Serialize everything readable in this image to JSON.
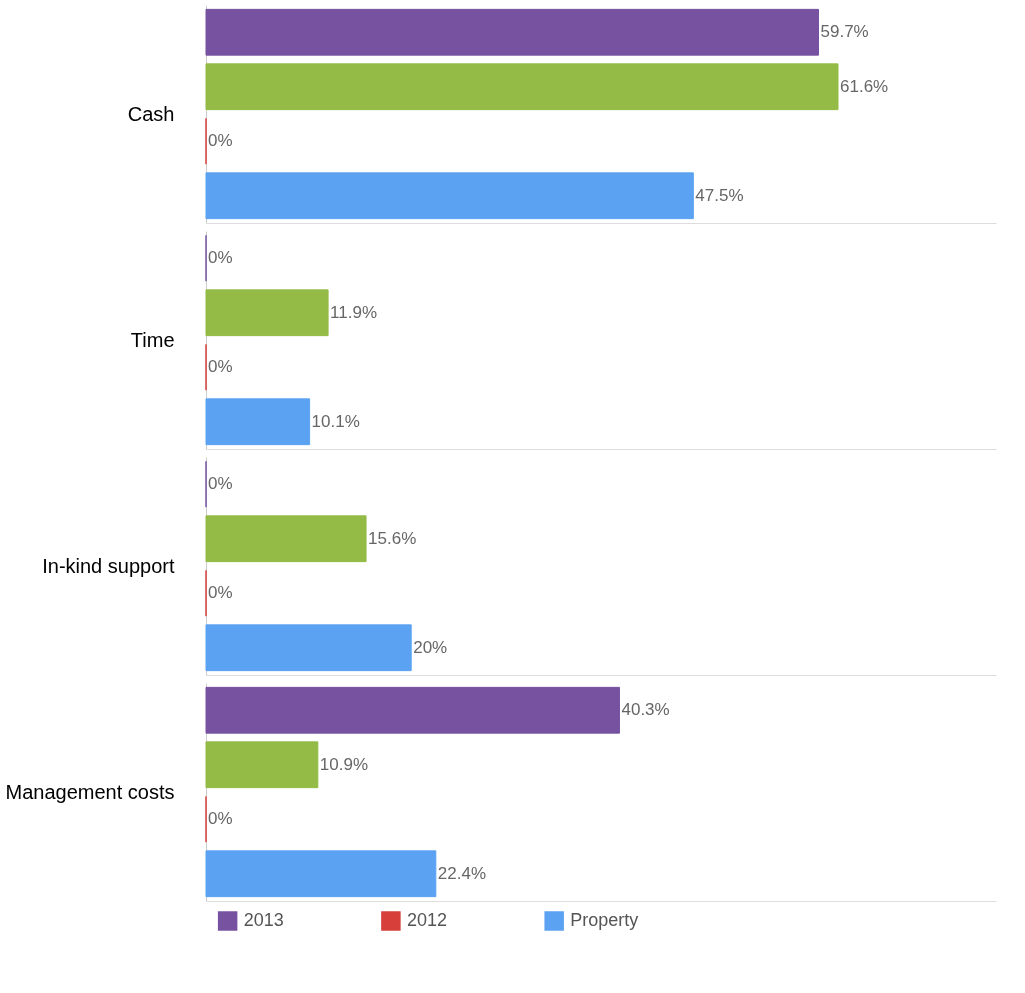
{
  "chart_data": {
    "type": "bar",
    "orientation": "horizontal",
    "legend": "bottom",
    "categories": [
      "Cash",
      "Time",
      "In-kind support",
      "Management costs"
    ],
    "series": [
      {
        "name": "2013",
        "color": "#7652a1",
        "values": [
          59.7,
          0,
          0,
          40.3
        ],
        "value_labels": [
          "59.7%",
          "0%",
          "0%",
          "40.3%"
        ]
      },
      {
        "color": "#93bb45",
        "values": [
          61.6,
          11.9,
          15.6,
          10.9
        ],
        "value_labels": [
          "61.6%",
          "11.9%",
          "15.6%",
          "10.9%"
        ]
      },
      {
        "name": "2012",
        "color": "#d63f3a",
        "values": [
          0,
          0,
          0,
          0
        ],
        "value_labels": [
          "0%",
          "0%",
          "0%",
          "0%"
        ]
      },
      {
        "name": "Property",
        "color": "#5ba2f2",
        "values": [
          47.5,
          10.1,
          20,
          22.4
        ],
        "value_labels": [
          "47.5%",
          "10.1%",
          "20%",
          "22.4%"
        ]
      }
    ]
  }
}
